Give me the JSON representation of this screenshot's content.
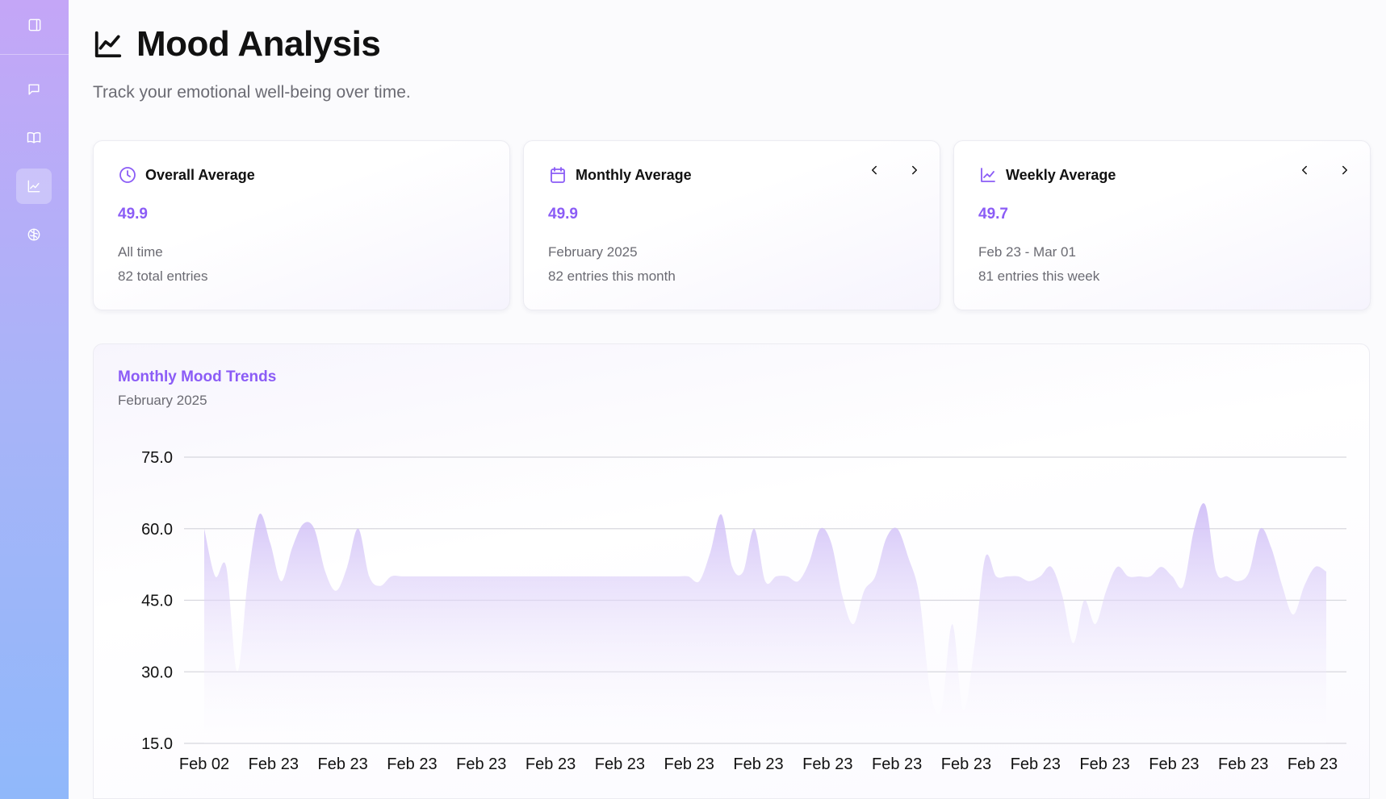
{
  "sidebar": {
    "items": [
      {
        "icon": "panel-toggle-icon"
      },
      {
        "icon": "chat-icon"
      },
      {
        "icon": "journal-book-icon"
      },
      {
        "icon": "chart-line-icon",
        "active": true
      },
      {
        "icon": "brain-icon"
      }
    ]
  },
  "header": {
    "title": "Mood Analysis",
    "subtitle": "Track your emotional well-being over time."
  },
  "cards": {
    "overall": {
      "label": "Overall Average",
      "value": "49.9",
      "line1": "All time",
      "line2": "82 total entries"
    },
    "monthly": {
      "label": "Monthly Average",
      "value": "49.9",
      "line1": "February 2025",
      "line2": "82 entries this month"
    },
    "weekly": {
      "label": "Weekly Average",
      "value": "49.7",
      "line1": "Feb 23 - Mar 01",
      "line2": "81 entries this week"
    }
  },
  "chart": {
    "title": "Monthly Mood Trends",
    "subtitle": "February 2025"
  },
  "colors": {
    "accent": "#8b5cf6",
    "area_fill": "#d9ccf7",
    "grid": "#d7d7de"
  },
  "chart_data": {
    "type": "area",
    "title": "Monthly Mood Trends",
    "subtitle": "February 2025",
    "xlabel": "",
    "ylabel": "",
    "ylim": [
      15,
      75
    ],
    "yticks": [
      15.0,
      30.0,
      45.0,
      60.0,
      75.0
    ],
    "x_tick_labels": [
      "Feb 02",
      "Feb 23",
      "Feb 23",
      "Feb 23",
      "Feb 23",
      "Feb 23",
      "Feb 23",
      "Feb 23",
      "Feb 23",
      "Feb 23",
      "Feb 23",
      "Feb 23",
      "Feb 23",
      "Feb 23",
      "Feb 23",
      "Feb 23",
      "Feb 23"
    ],
    "grid": true,
    "legend": "none",
    "values": [
      60,
      50,
      52,
      30,
      50,
      63,
      57,
      49,
      56,
      61,
      60,
      51,
      47,
      52,
      60,
      50,
      48,
      50,
      50,
      50,
      50,
      50,
      50,
      50,
      50,
      50,
      50,
      50,
      50,
      50,
      50,
      50,
      50,
      50,
      50,
      50,
      50,
      50,
      50,
      50,
      50,
      50,
      50,
      50,
      50,
      49,
      55,
      63,
      52,
      51,
      60,
      49,
      50,
      50,
      49,
      53,
      60,
      57,
      46,
      40,
      47,
      50,
      58,
      60,
      54,
      46,
      26,
      22,
      40,
      22,
      35,
      54,
      50,
      50,
      50,
      49,
      50,
      52,
      46,
      36,
      45,
      40,
      47,
      52,
      50,
      50,
      50,
      52,
      50,
      48,
      60,
      65,
      51,
      50,
      49,
      51,
      60,
      56,
      48,
      42,
      48,
      52,
      51
    ]
  }
}
